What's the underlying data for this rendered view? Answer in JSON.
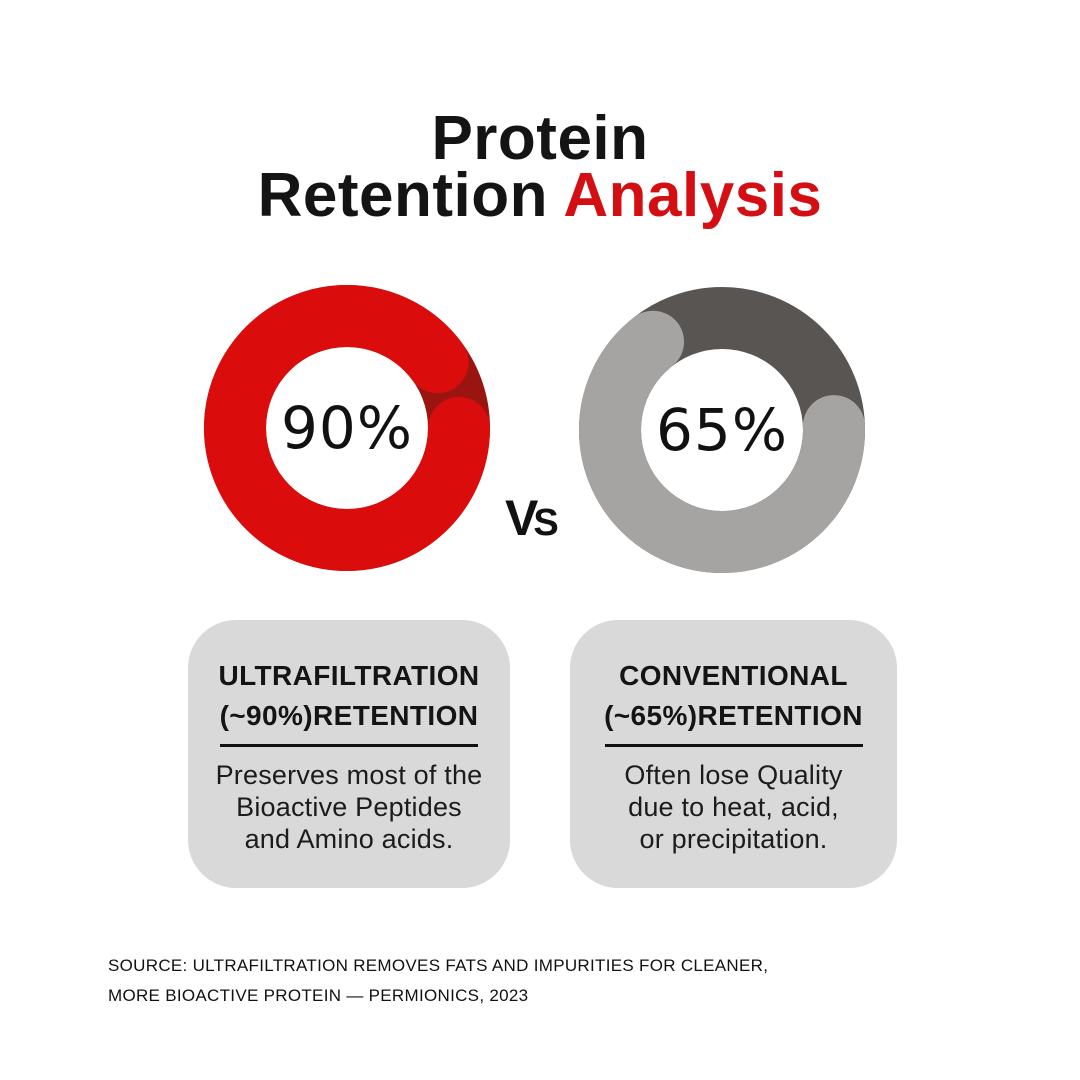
{
  "title": {
    "line1": "Protein",
    "line2_black": "Retention ",
    "line2_red": "Analysis"
  },
  "vs": {
    "v": "V",
    "s": "S"
  },
  "chart_data": [
    {
      "type": "pie",
      "variant": "donut",
      "label": "Ultrafiltration retention",
      "value_pct": 90,
      "remainder_pct": 10,
      "center_label": "90%",
      "color": "#da0c0c",
      "remainder_color": "#9a1510",
      "gap_center_deg": 72,
      "legend_position": "none",
      "grid": false
    },
    {
      "type": "pie",
      "variant": "donut",
      "label": "Conventional retention",
      "value_pct": 65,
      "remainder_pct": 35,
      "center_label": "65%",
      "color": "#a5a4a2",
      "remainder_color": "#585552",
      "gap_center_deg": 25,
      "legend_position": "none",
      "grid": false
    }
  ],
  "cards": [
    {
      "heading_line1": "ULTRAFILTRATION",
      "heading_line2": "(~90%)RETENTION",
      "body_lines": [
        "Preserves most of the",
        "Bioactive Peptides",
        "and Amino acids."
      ]
    },
    {
      "heading_line1": "CONVENTIONAL",
      "heading_line2": "(~65%)RETENTION",
      "body_lines": [
        "Often lose Quality",
        "due to heat, acid,",
        "or precipitation."
      ]
    }
  ],
  "source": {
    "line1": "SOURCE: ULTRAFILTRATION REMOVES FATS AND IMPURITIES FOR CLEANER,",
    "line2": "MORE BIOACTIVE PROTEIN — PERMIONICS, 2023"
  },
  "colors": {
    "background": "#ffffff",
    "title_black": "#141414",
    "title_red": "#d40f14",
    "card_background": "#d9d9d9",
    "text": "#111111"
  }
}
